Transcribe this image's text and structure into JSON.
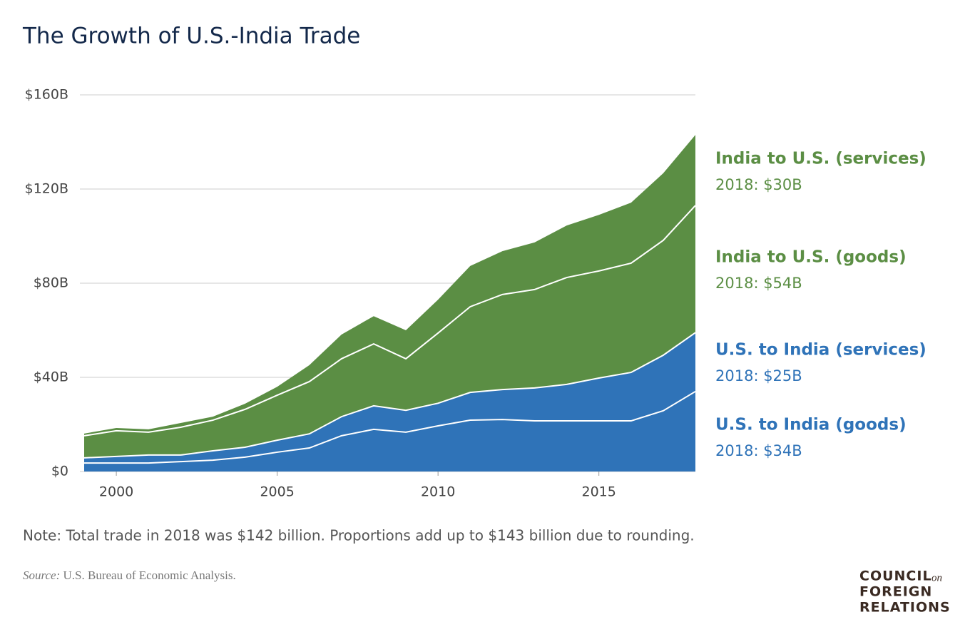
{
  "chart_data": {
    "type": "stacked_area",
    "title": "The Growth of U.S.-India Trade",
    "x": [
      1999,
      2000,
      2001,
      2002,
      2003,
      2004,
      2005,
      2006,
      2007,
      2008,
      2009,
      2010,
      2011,
      2012,
      2013,
      2014,
      2015,
      2016,
      2017,
      2018
    ],
    "xlim": [
      1999,
      2018
    ],
    "xticks": [
      2000,
      2005,
      2010,
      2015
    ],
    "ylim": [
      0,
      160
    ],
    "yticks": [
      {
        "value": 0,
        "label": "$0"
      },
      {
        "value": 40,
        "label": "$40B"
      },
      {
        "value": 80,
        "label": "$80B"
      },
      {
        "value": 120,
        "label": "$120B"
      },
      {
        "value": 160,
        "label": "$160B"
      }
    ],
    "grid": true,
    "series": [
      {
        "name": "U.S. to India (goods)",
        "color": "#2f73b8",
        "end_label": "2018: $34B",
        "values": [
          3.6,
          3.6,
          3.6,
          4.2,
          4.8,
          6.1,
          8.2,
          10,
          15.2,
          17.9,
          16.7,
          19.4,
          21.8,
          22.1,
          21.5,
          21.5,
          21.5,
          21.5,
          25.8,
          34
        ]
      },
      {
        "name": "U.S. to India (services)",
        "color": "#2f73b8",
        "end_label": "2018: $25B",
        "values": [
          2.2,
          2.8,
          3.4,
          2.8,
          4,
          4.2,
          5.1,
          6,
          8.1,
          10,
          9.3,
          9.6,
          11.8,
          12.7,
          14,
          15.5,
          18.2,
          20.6,
          23.6,
          25
        ]
      },
      {
        "name": "India to U.S. (goods)",
        "color": "#5b8e44",
        "end_label": "2018: $54B",
        "values": [
          9.4,
          10.9,
          9.7,
          11.8,
          13,
          16.1,
          19.1,
          22.2,
          24.6,
          26.3,
          21.9,
          29.8,
          36.4,
          40.4,
          41.8,
          45.4,
          45.5,
          46.4,
          48.8,
          54
        ]
      },
      {
        "name": "India to U.S. (services)",
        "color": "#5b8e44",
        "end_label": "2018: $30B",
        "values": [
          0.9,
          1.2,
          1.2,
          1.8,
          1.5,
          2.4,
          3.6,
          7,
          10.3,
          11.8,
          12.1,
          14.2,
          17.3,
          18.4,
          20,
          22.1,
          23.8,
          25.7,
          28.5,
          30
        ]
      }
    ],
    "note": "Note: Total trade in 2018 was $142 billion. Proportions add up to $143 billion due to rounding.",
    "source_label": "Source:",
    "source": "U.S. Bureau of Economic Analysis."
  },
  "logo": {
    "line1": "COUNCIL",
    "on": "on",
    "line2": "FOREIGN",
    "line3": "RELATIONS"
  }
}
